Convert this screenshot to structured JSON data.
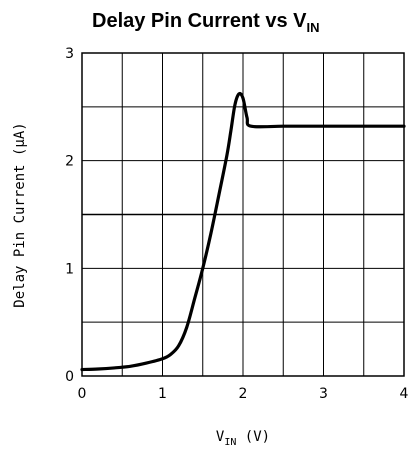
{
  "chart_data": {
    "type": "line",
    "title": {
      "main": "Delay Pin Current vs V",
      "sub": "IN"
    },
    "xlabel": {
      "main": "V",
      "sub": "IN",
      "unit": " (V)"
    },
    "ylabel": "Delay Pin Current (µA)",
    "xlim": [
      0,
      4
    ],
    "ylim": [
      0,
      3
    ],
    "x_ticks": [
      "0",
      "1",
      "2",
      "3",
      "4"
    ],
    "y_ticks": [
      "0",
      "1",
      "2",
      "3"
    ],
    "grid": true,
    "series": [
      {
        "color": "#000000",
        "points": [
          [
            0.0,
            0.06
          ],
          [
            0.2,
            0.065
          ],
          [
            0.4,
            0.075
          ],
          [
            0.6,
            0.09
          ],
          [
            0.8,
            0.12
          ],
          [
            1.0,
            0.16
          ],
          [
            1.1,
            0.2
          ],
          [
            1.2,
            0.28
          ],
          [
            1.3,
            0.45
          ],
          [
            1.4,
            0.72
          ],
          [
            1.5,
            1.0
          ],
          [
            1.6,
            1.32
          ],
          [
            1.7,
            1.68
          ],
          [
            1.8,
            2.05
          ],
          [
            1.85,
            2.28
          ],
          [
            1.9,
            2.52
          ],
          [
            1.95,
            2.62
          ],
          [
            2.0,
            2.58
          ],
          [
            2.05,
            2.4
          ],
          [
            2.1,
            2.32
          ],
          [
            2.5,
            2.32
          ],
          [
            3.0,
            2.32
          ],
          [
            3.5,
            2.32
          ],
          [
            4.0,
            2.32
          ]
        ]
      }
    ]
  }
}
